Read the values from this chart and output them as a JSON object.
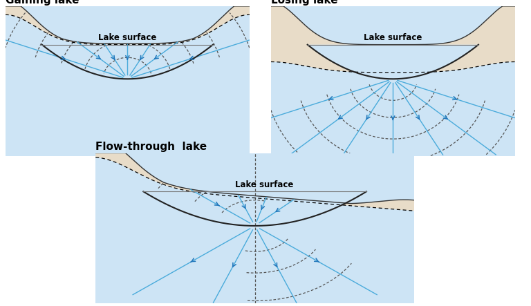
{
  "bg_color": "#ffffff",
  "lake_fill": "#cde4f5",
  "sand_fill": "#e8dcc8",
  "flow_color": "#4aabdb",
  "equip_color": "#555555",
  "arrow_color": "#2277bb",
  "titles": [
    "Gaining lake",
    "Losing lake",
    "Flow-through  lake"
  ],
  "label_text": "Lake surface",
  "title_fontsize": 11,
  "label_fontsize": 8.5,
  "border_color": "#cccccc"
}
